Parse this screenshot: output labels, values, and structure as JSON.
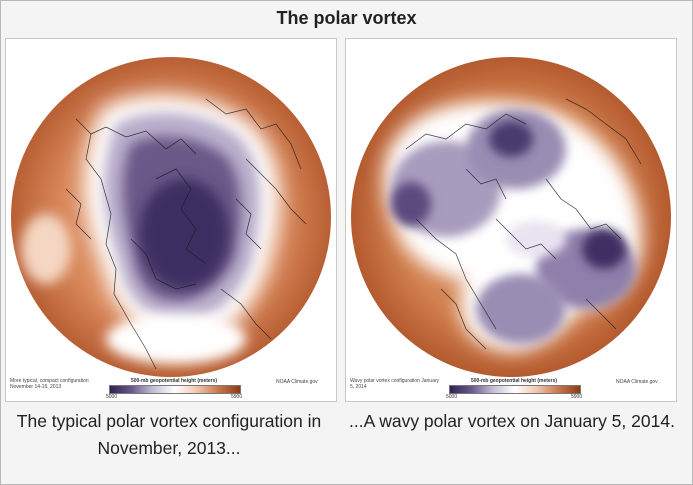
{
  "title": "The polar vortex",
  "panels": [
    {
      "caption": "The typical polar vortex configuration in November, 2013...",
      "map_note": "More typical, compact configuration November 14-16, 2013",
      "scale_title": "500-mb geopotential height (meters)",
      "scale_min": "5000",
      "scale_max": "5900",
      "credit": "NOAA Climate.gov"
    },
    {
      "caption": "...A wavy polar vortex on January 5, 2014.",
      "map_note": "Wavy polar vortex configuration January 5, 2014",
      "scale_title": "500-mb geopotential height (meters)",
      "scale_min": "5000",
      "scale_max": "5900",
      "credit": "NOAA Climate.gov"
    }
  ],
  "colors": {
    "warm": "#c46a3e",
    "cold": "#3a2a5e",
    "neutral": "#ffffff"
  }
}
